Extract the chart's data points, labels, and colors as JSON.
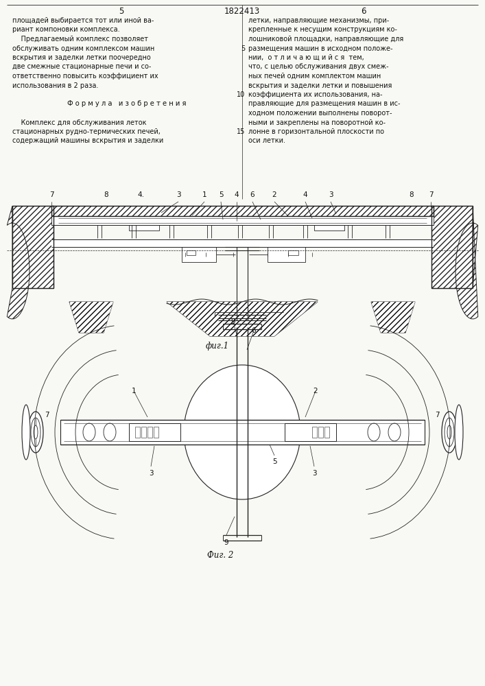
{
  "page_bg": "#f8f8f4",
  "line_color": "#222222",
  "text_color": "#111111",
  "page_num_left": "5",
  "page_num_center": "1822413",
  "page_num_right": "6",
  "left_col_text": [
    "площадей выбирается тот или иной ва-",
    "риант компоновки комплекса.",
    "    Предлагаемый комплекс позволяет",
    "обслуживать одним комплексом машин",
    "вскрытия и заделки летки поочередно",
    "две смежные стационарные печи и со-",
    "ответственно повысить коэффициент их",
    "использования в 2 раза.",
    "",
    "Ф о р м у л а   и з о б р е т е н и я",
    "",
    "    Комплекс для обслуживания леток",
    "стационарных рудно-термических печей,",
    "содержащий машины вскрытия и заделки"
  ],
  "right_col_text": [
    "летки, направляющие механизмы, при-",
    "крепленные к несущим конструкциям ко-",
    "лошниковой площадки, направляющие для",
    "размещения машин в исходном положе-",
    "нии,  о т л и ч а ю щ и й с я  тем,",
    "что, с целью обслуживания двух смеж-",
    "ных печей одним комплектом машин",
    "вскрытия и заделки летки и повышения",
    "коэффициента их использования, на-",
    "правляющие для размещения машин в ис-",
    "ходном положении выполнены поворот-",
    "ными и закреплены на поворотной ко-",
    "лонне в горизонтальной плоскости по",
    "оси летки."
  ],
  "line_numbers": [
    [
      "5",
      3
    ],
    [
      "10",
      8
    ],
    [
      "15",
      12
    ]
  ],
  "fig1_caption": "фиг.1",
  "fig2_caption": "Фиг. 2"
}
